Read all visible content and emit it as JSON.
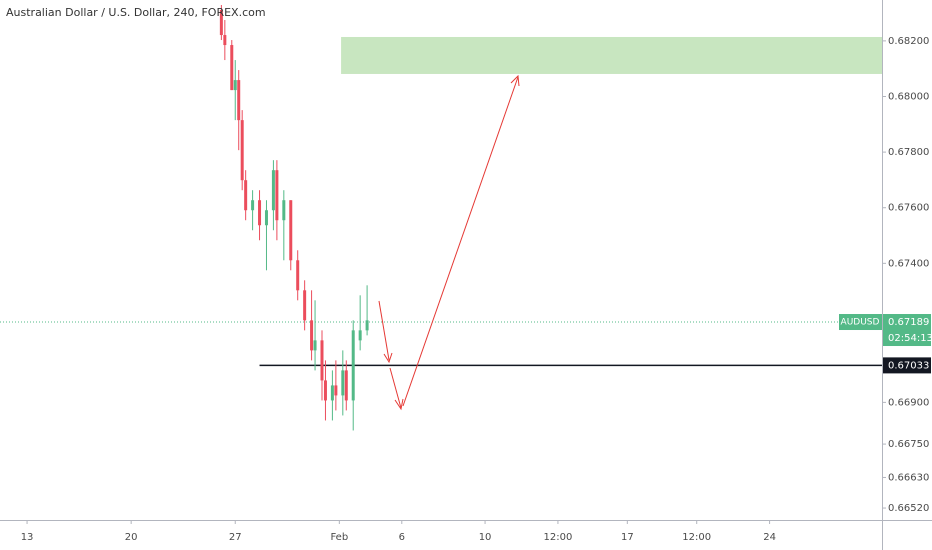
{
  "chart_data": {
    "type": "candlestick",
    "title": "Australian Dollar / U.S. Dollar, 240, FOREX.com",
    "symbol": "AUDUSD",
    "last_price": 0.67189,
    "countdown": "02:54:13",
    "up_color": "#53b987",
    "down_color": "#eb4d5c",
    "ylim": [
      0.66477,
      0.68347
    ],
    "yticks": [
      {
        "value": 0.682,
        "label": "0.68200"
      },
      {
        "value": 0.68,
        "label": "0.68000"
      },
      {
        "value": 0.678,
        "label": "0.67800"
      },
      {
        "value": 0.676,
        "label": "0.67600"
      },
      {
        "value": 0.674,
        "label": "0.67400"
      },
      {
        "value": 0.669,
        "label": "0.66900"
      },
      {
        "value": 0.6675,
        "label": "0.66750"
      },
      {
        "value": 0.6663,
        "label": "0.66630"
      },
      {
        "value": 0.6652,
        "label": "0.66520"
      }
    ],
    "xlim": [
      -7.8,
      246.4
    ],
    "xticks": [
      {
        "value": 0,
        "label": "13"
      },
      {
        "value": 30,
        "label": "20"
      },
      {
        "value": 60,
        "label": "27"
      },
      {
        "value": 90,
        "label": "Feb"
      },
      {
        "value": 108,
        "label": "6"
      },
      {
        "value": 132,
        "label": "10"
      },
      {
        "value": 153,
        "label": "12:00"
      },
      {
        "value": 173,
        "label": "17"
      },
      {
        "value": 193,
        "label": "12:00"
      },
      {
        "value": 214,
        "label": "24"
      }
    ],
    "x": [
      56,
      57,
      59,
      60,
      61,
      62,
      63,
      65,
      67,
      69,
      71,
      72,
      74,
      76,
      78,
      80,
      82,
      83,
      85,
      86,
      88,
      89,
      91,
      92,
      94,
      96,
      98
    ],
    "open": [
      0.68311,
      0.68221,
      0.68185,
      0.68023,
      0.68059,
      0.67915,
      0.67699,
      0.67591,
      0.67627,
      0.67537,
      0.67591,
      0.67735,
      0.67555,
      0.67627,
      0.67411,
      0.67303,
      0.67195,
      0.67087,
      0.67123,
      0.66979,
      0.66907,
      0.66961,
      0.66925,
      0.67015,
      0.66907,
      0.67123,
      0.67159
    ],
    "high": [
      0.68329,
      0.68275,
      0.68203,
      0.68131,
      0.68095,
      0.67951,
      0.67735,
      0.67663,
      0.67663,
      0.67627,
      0.67771,
      0.67771,
      0.67663,
      0.67627,
      0.67447,
      0.67339,
      0.67303,
      0.67267,
      0.67159,
      0.67051,
      0.67015,
      0.67051,
      0.67087,
      0.67051,
      0.67195,
      0.67285,
      0.67321
    ],
    "low": [
      0.68203,
      0.68131,
      0.68023,
      0.67915,
      0.67807,
      0.67663,
      0.67555,
      0.67519,
      0.67483,
      0.67375,
      0.67519,
      0.67483,
      0.67411,
      0.67375,
      0.67267,
      0.67159,
      0.67051,
      0.67015,
      0.66907,
      0.66835,
      0.66835,
      0.66871,
      0.66853,
      0.66871,
      0.66799,
      0.67087,
      0.67141
    ],
    "close": [
      0.68221,
      0.68185,
      0.68023,
      0.68059,
      0.67915,
      0.67699,
      0.67591,
      0.67627,
      0.67537,
      0.67591,
      0.67735,
      0.67555,
      0.67627,
      0.67411,
      0.67303,
      0.67195,
      0.67087,
      0.67123,
      0.66979,
      0.66907,
      0.66961,
      0.66925,
      0.67015,
      0.66907,
      0.67159,
      0.67159,
      0.67195
    ],
    "level": {
      "value": 0.67033,
      "start": 67
    },
    "zone": {
      "top": 0.68214,
      "bottom": 0.68081,
      "start": 90.5,
      "color": "#c8e6c0"
    }
  }
}
